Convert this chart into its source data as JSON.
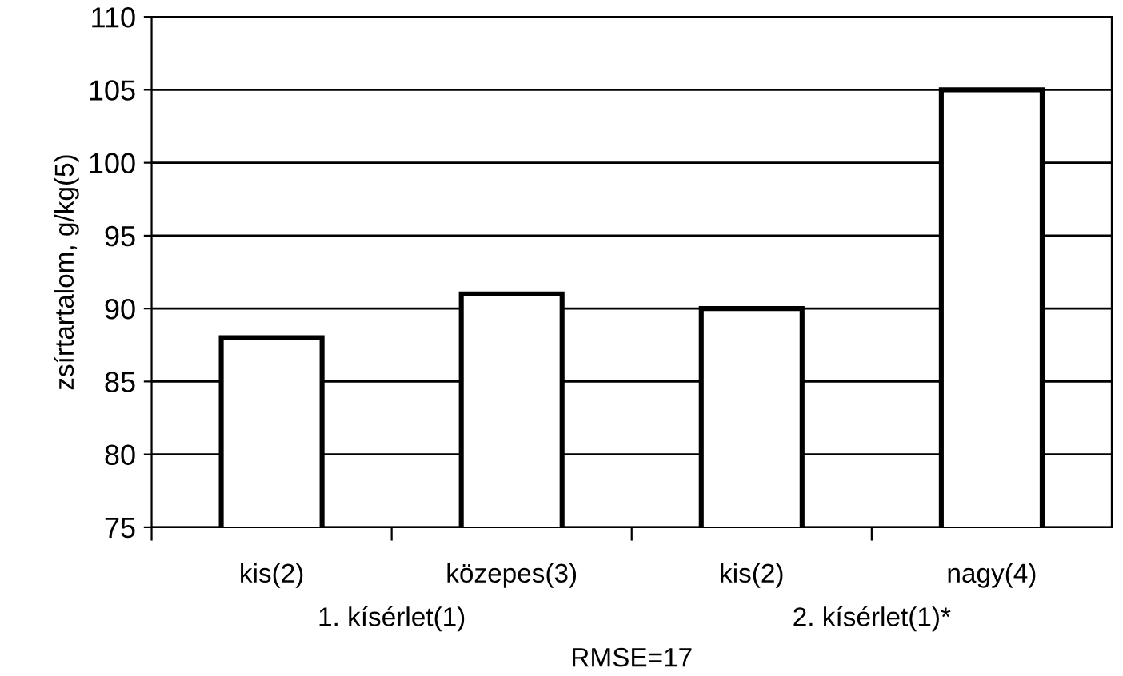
{
  "chart_data": {
    "type": "bar",
    "ylabel": "zsírtartalom, g/kg(5)",
    "categories": [
      "kis(2)",
      "közepes(3)",
      "kis(2)",
      "nagy(4)"
    ],
    "values": [
      88,
      91,
      90,
      105
    ],
    "color": "#ffffff",
    "ylim": [
      75,
      110
    ],
    "yticks": [
      75,
      80,
      85,
      90,
      95,
      100,
      105,
      110
    ],
    "grid": "y",
    "annotations": [
      "1. kísérlet(1)",
      "2. kísérlet(1)*",
      "RMSE=17"
    ]
  }
}
